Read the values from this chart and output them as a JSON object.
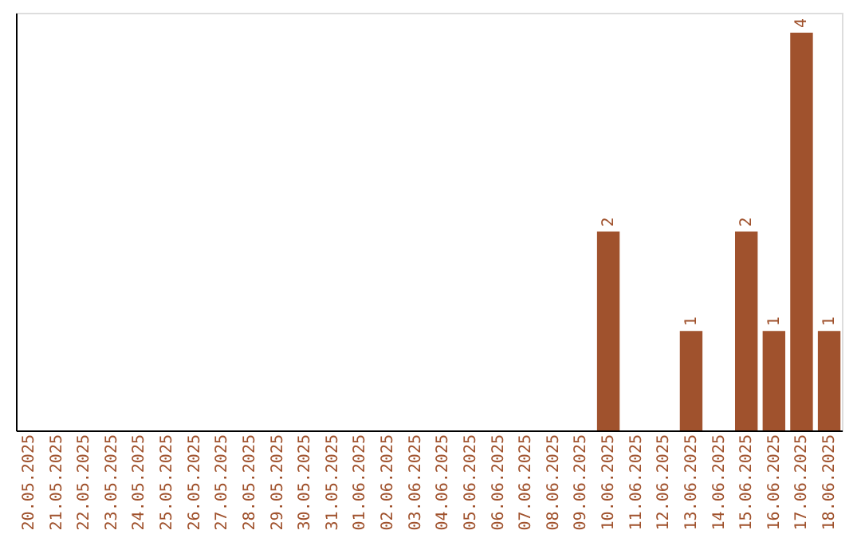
{
  "chart_data": {
    "type": "bar",
    "categories": [
      "20.05.2025",
      "21.05.2025",
      "22.05.2025",
      "23.05.2025",
      "24.05.2025",
      "25.05.2025",
      "26.05.2025",
      "27.05.2025",
      "28.05.2025",
      "29.05.2025",
      "30.05.2025",
      "31.05.2025",
      "01.06.2025",
      "02.06.2025",
      "03.06.2025",
      "04.06.2025",
      "05.06.2025",
      "06.06.2025",
      "07.06.2025",
      "08.06.2025",
      "09.06.2025",
      "10.06.2025",
      "11.06.2025",
      "12.06.2025",
      "13.06.2025",
      "14.06.2025",
      "15.06.2025",
      "16.06.2025",
      "17.06.2025",
      "18.06.2025"
    ],
    "values": [
      null,
      null,
      null,
      null,
      null,
      null,
      null,
      null,
      null,
      null,
      null,
      null,
      null,
      null,
      null,
      null,
      null,
      null,
      null,
      null,
      null,
      2,
      null,
      null,
      1,
      null,
      2,
      1,
      4,
      1
    ],
    "value_labels": [
      null,
      null,
      null,
      null,
      null,
      null,
      null,
      null,
      null,
      null,
      null,
      null,
      null,
      null,
      null,
      null,
      null,
      null,
      null,
      null,
      null,
      "2",
      null,
      null,
      "1",
      null,
      "2",
      "1",
      "4",
      "1"
    ],
    "color": "#a0522d",
    "ylim": [
      0,
      4.2
    ],
    "tick_labels": "x",
    "grid": false
  }
}
